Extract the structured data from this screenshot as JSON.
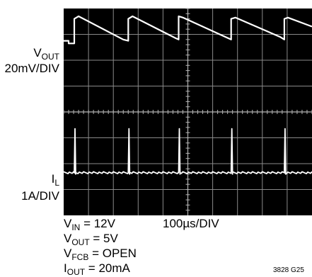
{
  "chart_data": {
    "type": "line",
    "title": "",
    "grid": true,
    "grid_divisions": {
      "x": 10,
      "y": 8
    },
    "time_base": "100µs/DIV",
    "x_unit": "µs",
    "xlim": [
      0,
      350
    ],
    "traces": [
      {
        "name": "VOUT",
        "label_main": "V",
        "label_sub": "OUT",
        "scale": "20mV/DIV",
        "unit": "mV",
        "ylim": [
          -20,
          20
        ],
        "color": "#ffffff",
        "points": [
          [
            0,
            -5
          ],
          [
            7,
            -5
          ],
          [
            7,
            -7
          ],
          [
            15,
            -7
          ],
          [
            15,
            12
          ],
          [
            21,
            14
          ],
          [
            84,
            -4
          ],
          [
            91,
            -5
          ],
          [
            91,
            12
          ],
          [
            97,
            14
          ],
          [
            158,
            -3
          ],
          [
            162,
            -4
          ],
          [
            162,
            14
          ],
          [
            168,
            13
          ],
          [
            232,
            -3
          ],
          [
            236,
            -4
          ],
          [
            236,
            12
          ],
          [
            242,
            13
          ],
          [
            305,
            -2
          ],
          [
            311,
            -4
          ],
          [
            311,
            12
          ],
          [
            316,
            13
          ],
          [
            350,
            6
          ]
        ]
      },
      {
        "name": "IL",
        "label_main": "I",
        "label_sub": "L",
        "scale": "1A/DIV",
        "unit": "A",
        "ylim": [
          -1,
          3
        ],
        "color": "#ffffff",
        "baseline": 0,
        "spike_peak": 1.7,
        "spikes": [
          15,
          91,
          162,
          236,
          311
        ]
      }
    ]
  },
  "conditions": [
    {
      "main": "V",
      "sub": "IN",
      "rest": " = 12V"
    },
    {
      "main": "V",
      "sub": "OUT",
      "rest": " = 5V"
    },
    {
      "main": "V",
      "sub": "FCB",
      "rest": " = OPEN"
    },
    {
      "main": "I",
      "sub": "OUT",
      "rest": " = 20mA"
    }
  ],
  "figure_id": "3828 G25",
  "colors": {
    "screen": "#000000",
    "grid": "#8a8a8a",
    "trace": "#ffffff"
  }
}
